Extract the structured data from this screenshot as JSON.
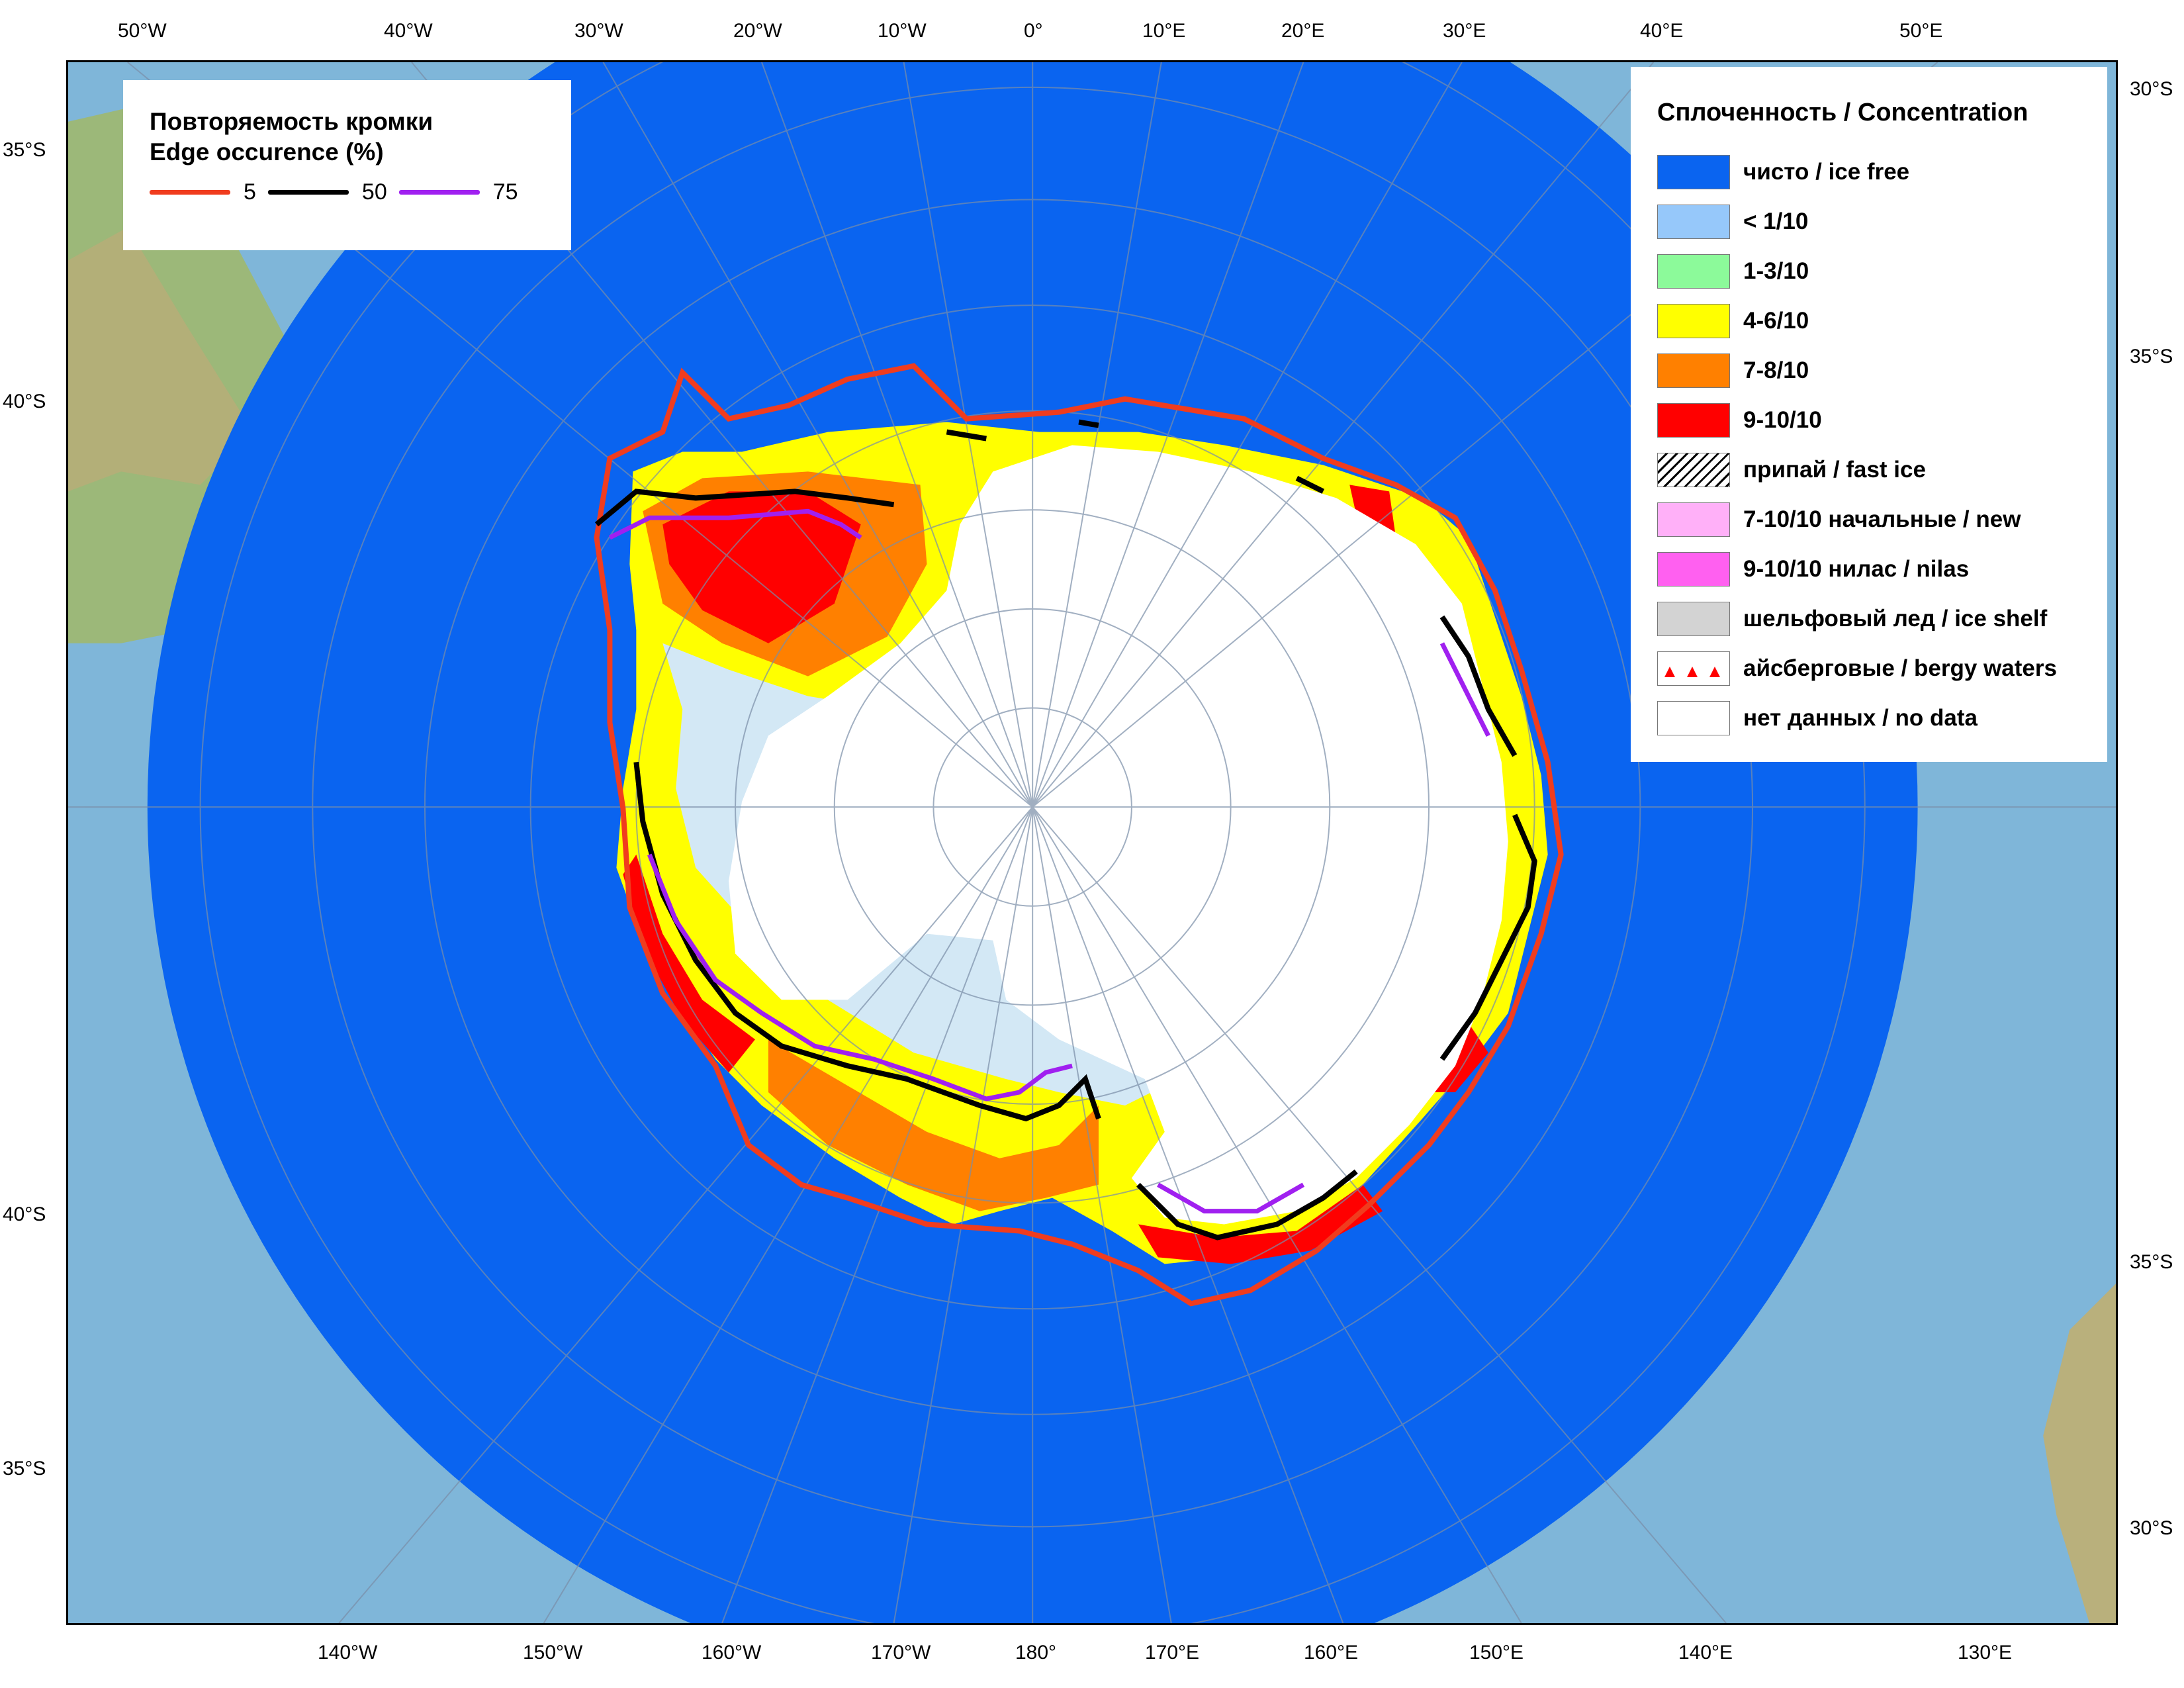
{
  "edge_legend": {
    "title_line1": "Повторяемость кромки",
    "title_line2": "Edge occurence (%)",
    "items": [
      {
        "label": "5",
        "color": "#f03c1e"
      },
      {
        "label": "50",
        "color": "#000000"
      },
      {
        "label": "75",
        "color": "#a020f0"
      }
    ]
  },
  "concentration_legend": {
    "title": "Сплоченность / Concentration",
    "items": [
      {
        "label": "чисто / ice free",
        "color": "#0a64f0",
        "icon": "solid"
      },
      {
        "label": "< 1/10",
        "color": "#96c8fa",
        "icon": "solid"
      },
      {
        "label": "1-3/10",
        "color": "#8cfa9a",
        "icon": "solid"
      },
      {
        "label": "4-6/10",
        "color": "#ffff00",
        "icon": "solid"
      },
      {
        "label": "7-8/10",
        "color": "#ff8000",
        "icon": "solid"
      },
      {
        "label": "9-10/10",
        "color": "#ff0000",
        "icon": "solid"
      },
      {
        "label": "припай / fast ice",
        "color": "#ffffff",
        "icon": "hatch"
      },
      {
        "label": "7-10/10 начальные / new",
        "color": "#ffb0f8",
        "icon": "solid"
      },
      {
        "label": "9-10/10 нилас / nilas",
        "color": "#ff60f0",
        "icon": "solid"
      },
      {
        "label": "шельфовый лед / ice shelf",
        "color": "#d3d3d3",
        "icon": "solid"
      },
      {
        "label": "айсберговые / bergy waters",
        "color": "#ffffff",
        "icon": "triangles"
      },
      {
        "label": "нет данных / no data",
        "color": "#ffffff",
        "icon": "solid"
      }
    ]
  },
  "graticule": {
    "top": [
      "50°W",
      "40°W",
      "30°W",
      "20°W",
      "10°W",
      "0°",
      "10°E",
      "20°E",
      "30°E",
      "40°E",
      "50°E"
    ],
    "bottom": [
      "140°W",
      "150°W",
      "160°W",
      "170°W",
      "180°",
      "170°E",
      "160°E",
      "150°E",
      "140°E",
      "130°E"
    ],
    "left": [
      "35°S",
      "40°S",
      "40°S",
      "35°S"
    ],
    "right": [
      "30°S",
      "35°S",
      "35°S",
      "30°S"
    ]
  },
  "colors": {
    "ocean": "#0a64f0",
    "land_sea": "#7fb6d9",
    "ice_free": "#0a64f0",
    "shelf_ice": "#d3e8f5",
    "continent": "#ffffff"
  }
}
